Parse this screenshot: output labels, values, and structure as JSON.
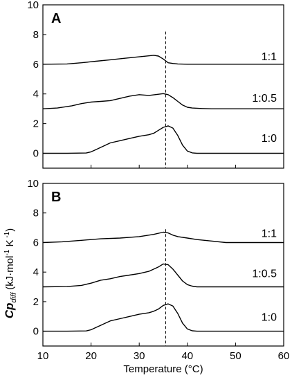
{
  "chart_data": [
    {
      "type": "line",
      "panel": "A",
      "xlim": [
        10,
        60
      ],
      "ylim": [
        -1,
        10
      ],
      "y_ticks": [
        0,
        2,
        4,
        6,
        8,
        10
      ],
      "grid": false,
      "marker_line_x": 35.5,
      "series": [
        {
          "name": "1:1",
          "label_x": 60,
          "label_y": 6.5,
          "x": [
            10,
            15,
            18,
            21,
            24,
            27,
            30,
            33,
            34,
            35,
            36,
            37,
            38,
            40,
            45,
            50,
            55,
            60
          ],
          "y": [
            6.0,
            6.02,
            6.1,
            6.2,
            6.3,
            6.4,
            6.5,
            6.6,
            6.55,
            6.35,
            6.1,
            6.05,
            6.02,
            6.0,
            6.0,
            6.0,
            6.0,
            6.0
          ]
        },
        {
          "name": "1:0.5",
          "label_x": 60,
          "label_y": 3.7,
          "x": [
            10,
            13,
            16,
            18,
            20,
            22,
            24,
            26,
            28,
            30,
            32,
            34,
            35,
            36,
            37,
            38,
            39,
            40,
            41,
            43,
            45,
            50,
            60
          ],
          "y": [
            3.0,
            3.05,
            3.2,
            3.35,
            3.45,
            3.5,
            3.55,
            3.7,
            3.85,
            3.95,
            3.9,
            3.98,
            4.02,
            3.95,
            3.75,
            3.5,
            3.25,
            3.1,
            3.05,
            3.02,
            3.0,
            3.0,
            3.0
          ]
        },
        {
          "name": "1:0",
          "label_x": 60,
          "label_y": 1.0,
          "x": [
            10,
            15,
            19,
            20,
            21,
            22,
            23,
            24,
            26,
            28,
            30,
            32,
            33,
            34,
            35,
            36,
            37,
            38,
            39,
            40,
            41,
            42,
            45,
            60
          ],
          "y": [
            0.0,
            0.0,
            0.02,
            0.1,
            0.25,
            0.4,
            0.55,
            0.7,
            0.85,
            1.0,
            1.15,
            1.25,
            1.35,
            1.55,
            1.75,
            1.85,
            1.7,
            1.2,
            0.55,
            0.15,
            0.03,
            0.0,
            0.0,
            0.0
          ]
        }
      ]
    },
    {
      "type": "line",
      "panel": "B",
      "xlim": [
        10,
        60
      ],
      "ylim": [
        -1,
        10
      ],
      "y_ticks": [
        0,
        2,
        4,
        6,
        8,
        10
      ],
      "x_ticks": [
        10,
        20,
        30,
        40,
        50,
        60
      ],
      "xlabel": "Temperature (°C)",
      "grid": false,
      "marker_line_x": 35.5,
      "series": [
        {
          "name": "1:1",
          "label_x": 60,
          "label_y": 6.6,
          "x": [
            10,
            14,
            18,
            22,
            26,
            30,
            33,
            35,
            36,
            37,
            38,
            40,
            42,
            45,
            48,
            60
          ],
          "y": [
            6.0,
            6.05,
            6.15,
            6.25,
            6.3,
            6.4,
            6.55,
            6.7,
            6.65,
            6.5,
            6.4,
            6.3,
            6.2,
            6.1,
            6.0,
            6.0
          ]
        },
        {
          "name": "1:0.5",
          "label_x": 60,
          "label_y": 3.9,
          "x": [
            10,
            15,
            18,
            20,
            22,
            24,
            26,
            28,
            30,
            32,
            34,
            35,
            36,
            37,
            38,
            39,
            40,
            41,
            42,
            45,
            60
          ],
          "y": [
            3.0,
            3.02,
            3.1,
            3.25,
            3.45,
            3.55,
            3.7,
            3.8,
            3.9,
            4.05,
            4.35,
            4.55,
            4.5,
            4.2,
            3.8,
            3.4,
            3.15,
            3.05,
            3.0,
            3.0,
            3.0
          ]
        },
        {
          "name": "1:0",
          "label_x": 60,
          "label_y": 0.95,
          "x": [
            10,
            15,
            19,
            20,
            21,
            22,
            23,
            24,
            26,
            28,
            30,
            32,
            33,
            34,
            35,
            36,
            37,
            38,
            39,
            40,
            41,
            42,
            45,
            60
          ],
          "y": [
            0.0,
            0.0,
            0.02,
            0.1,
            0.25,
            0.4,
            0.55,
            0.7,
            0.85,
            1.0,
            1.15,
            1.25,
            1.35,
            1.5,
            1.75,
            1.85,
            1.7,
            1.2,
            0.55,
            0.15,
            0.03,
            0.0,
            0.0,
            0.0
          ]
        }
      ]
    }
  ],
  "ylabel": {
    "main": "Cp",
    "sub": "diff",
    "units_prefix": " (kJ·mol",
    "exp1": "-1",
    "units_mid": " K",
    "exp2": " -1",
    "units_suffix": ")"
  }
}
